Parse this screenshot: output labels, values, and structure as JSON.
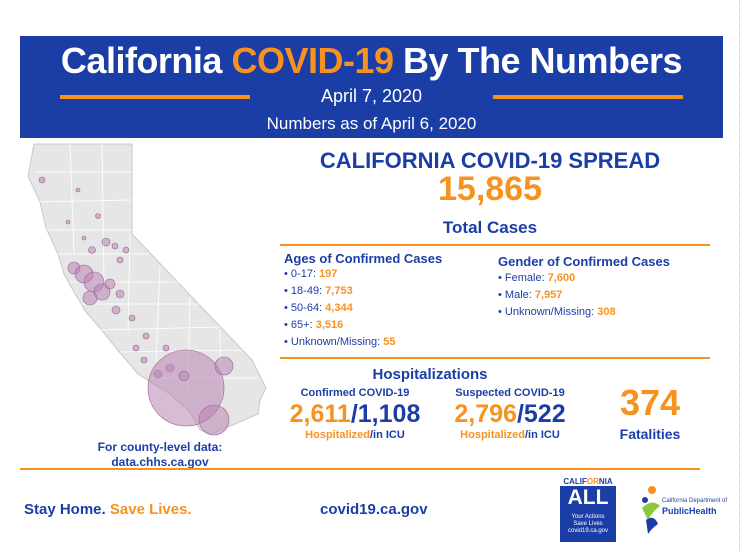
{
  "header": {
    "title_part1": "California ",
    "title_accent": "COVID-19",
    "title_part2": " By The Numbers",
    "date": "April 7, 2020",
    "as_of": "Numbers as of April 6, 2020"
  },
  "spread": {
    "title": "CALIFORNIA COVID-19 SPREAD",
    "total_cases": "15,865",
    "total_label": "Total Cases"
  },
  "ages": {
    "title": "Ages of Confirmed Cases",
    "items": [
      {
        "label": "0-17: ",
        "value": "197"
      },
      {
        "label": "18-49: ",
        "value": "7,753"
      },
      {
        "label": "50-64: ",
        "value": "4,344"
      },
      {
        "label": "65+: ",
        "value": "3,516"
      },
      {
        "label": "Unknown/Missing: ",
        "value": "55"
      }
    ]
  },
  "gender": {
    "title": "Gender of Confirmed Cases",
    "items": [
      {
        "label": "Female: ",
        "value": "7,600"
      },
      {
        "label": "Male: ",
        "value": "7,957"
      },
      {
        "label": "Unknown/Missing: ",
        "value": "308"
      }
    ]
  },
  "hospitalizations": {
    "title": "Hospitalizations",
    "confirmed": {
      "label": "Confirmed COVID-19",
      "hospitalized": "2,611",
      "icu": "1,108",
      "sub_hosp": "Hospitalized",
      "sub_icu": "/in ICU"
    },
    "suspected": {
      "label": "Suspected COVID-19",
      "hospitalized": "2,796",
      "icu": "522",
      "sub_hosp": "Hospitalized",
      "sub_icu": "/in ICU"
    }
  },
  "fatalities": {
    "value": "374",
    "label": "Fatalities"
  },
  "map": {
    "caption_line1": "For county-level data:",
    "caption_line2": "data.chhs.ca.gov",
    "land_color": "#e6e6e6",
    "bubble_color": "#b884b3"
  },
  "footer": {
    "slogan_part1": "Stay Home. ",
    "slogan_part2": "Save Lives.",
    "website": "covid19.ca.gov"
  },
  "logos": {
    "ca_all_top_part1": "CALIF",
    "ca_all_top_accent": "OR",
    "ca_all_top_part2": "NIA",
    "ca_all_big": "ALL",
    "ca_all_small_line1": "Your Actions",
    "ca_all_small_line2": "Save Lives",
    "ca_all_small_line3": "covid19.ca.gov",
    "cdph_line1": "California Department of",
    "cdph_line2": "PublicHealth"
  },
  "colors": {
    "brand_blue": "#1b3ea6",
    "accent_orange": "#f7921e"
  }
}
